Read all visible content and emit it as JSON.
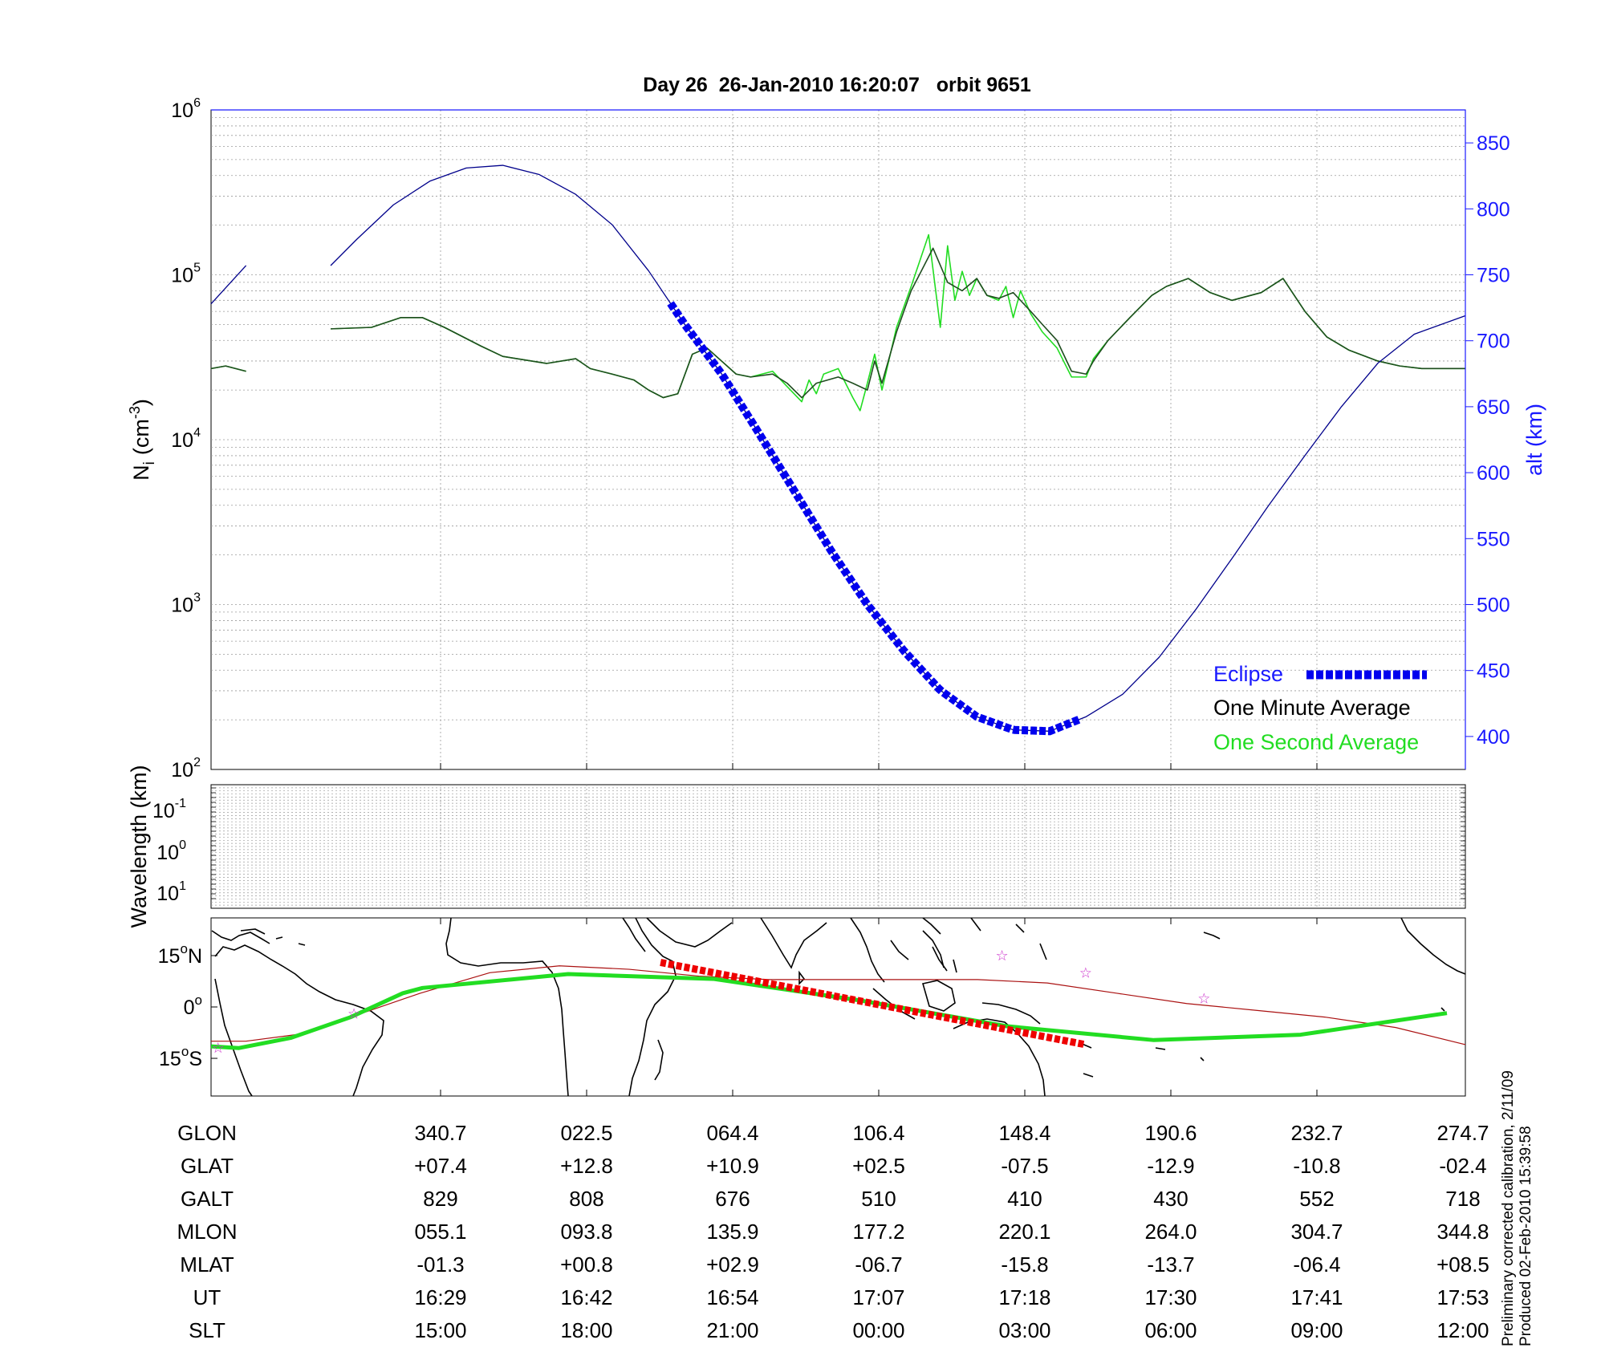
{
  "title": "Day 26  26-Jan-2010 16:20:07   orbit 9651",
  "colors": {
    "eclipse": "#0000ee",
    "altitude": "#00008b",
    "one_minute": "#1f4d1f",
    "one_second": "#22dd22",
    "ground_track": "#22dd22",
    "orbit_track": "#aa1111",
    "eclipse_track": "#ee0000",
    "markers": "#cc33cc",
    "right_axis": "#1a1aff"
  },
  "chart_data": [
    {
      "id": "ion-density",
      "type": "line",
      "ylabel": "N",
      "ylabel_sub": "i",
      "ylabel_unit": "(cm",
      "ylabel_exp": "-3",
      "yscale": "log",
      "ylim": [
        100,
        1000000
      ],
      "yticks": [
        {
          "base": "10",
          "exp": "2",
          "value": 100
        },
        {
          "base": "10",
          "exp": "3",
          "value": 1000
        },
        {
          "base": "10",
          "exp": "4",
          "value": 10000
        },
        {
          "base": "10",
          "exp": "5",
          "value": 100000
        },
        {
          "base": "10",
          "exp": "6",
          "value": 1000000
        }
      ],
      "y2label": "alt (km)",
      "y2lim": [
        375,
        875
      ],
      "y2ticks": [
        "400",
        "450",
        "500",
        "550",
        "600",
        "650",
        "700",
        "750",
        "800",
        "850"
      ],
      "xlim": [
        0,
        8.6
      ],
      "grid": true,
      "legend": {
        "placement": "bottom-right",
        "entries": [
          {
            "label": "Eclipse",
            "series": "eclipse"
          },
          {
            "label": "One Minute Average",
            "series": "one_minute"
          },
          {
            "label": "One Second Average",
            "series": "one_second"
          }
        ]
      },
      "series": [
        {
          "key": "one_minute",
          "name": "One Minute Average",
          "segments": [
            {
              "x": [
                0,
                0.1,
                0.24
              ],
              "y": [
                27000,
                28000,
                26000
              ]
            },
            {
              "x": [
                0.82,
                1.1,
                1.3,
                1.45,
                1.6,
                1.85,
                2.0,
                2.3,
                2.5,
                2.6,
                2.75,
                2.9,
                3.0,
                3.1,
                3.2,
                3.3,
                3.4,
                3.5,
                3.6,
                3.7,
                3.85,
                3.95,
                4.05,
                4.15,
                4.3,
                4.4,
                4.5,
                4.55,
                4.6,
                4.7,
                4.8,
                4.95,
                5.05,
                5.15,
                5.25,
                5.32,
                5.4,
                5.5,
                5.62,
                5.7,
                5.8,
                5.9,
                6.0,
                6.05,
                6.15,
                6.3,
                6.45,
                6.55,
                6.7,
                6.85,
                7.0,
                7.2,
                7.35,
                7.5,
                7.65,
                7.8,
                8.0,
                8.15,
                8.3,
                8.45,
                8.6
              ],
              "y": [
                47000,
                48000,
                55000,
                55000,
                48000,
                37000,
                32000,
                29000,
                31000,
                27000,
                25000,
                23000,
                20000,
                18000,
                19000,
                33000,
                36000,
                30000,
                25000,
                24000,
                25000,
                22000,
                18000,
                22000,
                24000,
                22000,
                20000,
                30000,
                22000,
                45000,
                80000,
                145000,
                90000,
                80000,
                95000,
                75000,
                72000,
                78000,
                60000,
                50000,
                40000,
                26000,
                25000,
                30000,
                40000,
                55000,
                75000,
                85000,
                95000,
                78000,
                70000,
                78000,
                95000,
                60000,
                42000,
                35000,
                30000,
                28000,
                27000,
                27000,
                27000
              ]
            }
          ]
        },
        {
          "key": "one_second",
          "name": "One Second Average",
          "segments": [
            {
              "x": [
                0,
                0.1,
                0.24
              ],
              "y": [
                27000,
                28000,
                26000
              ]
            },
            {
              "x": [
                0.82,
                1.1,
                1.3,
                1.45,
                1.6,
                1.85,
                2.0,
                2.3,
                2.5,
                2.6,
                2.75,
                2.9,
                3.0,
                3.1,
                3.2,
                3.3,
                3.4,
                3.5,
                3.6,
                3.7,
                3.85,
                3.95,
                4.05,
                4.1,
                4.15,
                4.2,
                4.3,
                4.4,
                4.45,
                4.5,
                4.55,
                4.6,
                4.7,
                4.8,
                4.92,
                5.0,
                5.05,
                5.1,
                5.15,
                5.2,
                5.25,
                5.32,
                5.4,
                5.45,
                5.5,
                5.55,
                5.62,
                5.7,
                5.8,
                5.9,
                6.0,
                6.05,
                6.15,
                6.3,
                6.45,
                6.55,
                6.7,
                6.85,
                7.0,
                7.2,
                7.35,
                7.5,
                7.65,
                7.8,
                8.0,
                8.15,
                8.3,
                8.45,
                8.6
              ],
              "y": [
                47000,
                48000,
                55000,
                55000,
                48000,
                37000,
                32000,
                29000,
                31000,
                27000,
                25000,
                23000,
                20000,
                18000,
                19000,
                33000,
                36000,
                30000,
                25000,
                24000,
                26000,
                21000,
                17000,
                23000,
                19000,
                25000,
                27000,
                18000,
                15000,
                22000,
                33000,
                20000,
                48000,
                85000,
                175000,
                48000,
                150000,
                70000,
                105000,
                75000,
                95000,
                75000,
                70000,
                85000,
                55000,
                80000,
                58000,
                45000,
                36000,
                24000,
                24000,
                31000,
                40000,
                55000,
                75000,
                85000,
                95000,
                78000,
                70000,
                78000,
                95000,
                60000,
                42000,
                35000,
                30000,
                28000,
                27000,
                27000,
                27000
              ]
            }
          ]
        },
        {
          "key": "altitude",
          "name": "alt (km)",
          "axis": "right",
          "segments": [
            {
              "x": [
                0,
                0.24
              ],
              "y": [
                728,
                757
              ]
            },
            {
              "x": [
                0.82,
                1.0,
                1.25,
                1.5,
                1.75,
                2.0,
                2.25,
                2.5,
                2.75,
                3.0,
                3.25,
                3.5,
                3.75,
                4.0,
                4.25,
                4.5,
                4.75,
                5.0,
                5.25,
                5.5,
                5.75,
                6.0,
                6.25,
                6.5,
                6.75,
                7.0,
                7.25,
                7.5,
                7.75,
                8.0,
                8.25,
                8.6
              ],
              "y": [
                757,
                777,
                803,
                821,
                831,
                833,
                826,
                811,
                788,
                753,
                712,
                675,
                631,
                586,
                541,
                500,
                465,
                435,
                415,
                405,
                404,
                415,
                432,
                460,
                496,
                535,
                575,
                613,
                650,
                683,
                705,
                719
              ]
            }
          ]
        },
        {
          "key": "eclipse",
          "name": "Eclipse",
          "axis": "right",
          "x_range": [
            3.15,
            5.95
          ]
        }
      ]
    },
    {
      "id": "wavelength",
      "type": "heatmap",
      "ylabel": "Wavelength (km)",
      "yticks": [
        {
          "base": "10",
          "exp": "-1"
        },
        {
          "base": "10",
          "exp": "0"
        },
        {
          "base": "10",
          "exp": "1"
        }
      ],
      "grid": true
    },
    {
      "id": "ground-track",
      "type": "line",
      "yticks": [
        {
          "value": "15",
          "deg": "o",
          "hem": "N",
          "lat": 15
        },
        {
          "value": "0",
          "deg": "o",
          "hem": "",
          "lat": 0
        },
        {
          "value": "15",
          "deg": "o",
          "hem": "S",
          "lat": -15
        }
      ],
      "ylim": [
        -26,
        26
      ],
      "xlim": [
        -80,
        280
      ],
      "magnetic_equator": {
        "lon": [
          -80,
          -70,
          -55,
          -40,
          -20,
          0,
          20,
          40,
          60,
          80,
          100,
          120,
          140,
          160,
          180,
          200,
          220,
          240,
          260,
          280
        ],
        "lat": [
          -10,
          -10,
          -8,
          -3,
          4,
          10,
          12,
          11,
          9,
          8,
          8,
          8,
          8,
          7,
          4,
          1,
          -1,
          -3,
          -6,
          -11
        ]
      },
      "markers_lonlat": [
        [
          -78,
          -12
        ],
        [
          -39,
          -2
        ],
        [
          147,
          15
        ],
        [
          171,
          10
        ],
        [
          205,
          2.5
        ]
      ],
      "eclipse_lon_range": [
        49,
        171
      ]
    }
  ],
  "table": {
    "rows": [
      {
        "label": "GLON",
        "values": [
          "340.7",
          "022.5",
          "064.4",
          "106.4",
          "148.4",
          "190.6",
          "232.7",
          "274.7"
        ]
      },
      {
        "label": "GLAT",
        "values": [
          "+07.4",
          "+12.8",
          "+10.9",
          "+02.5",
          "-07.5",
          "-12.9",
          "-10.8",
          "-02.4"
        ]
      },
      {
        "label": "GALT",
        "values": [
          "829",
          "808",
          "676",
          "510",
          "410",
          "430",
          "552",
          "718"
        ]
      },
      {
        "label": "MLON",
        "values": [
          "055.1",
          "093.8",
          "135.9",
          "177.2",
          "220.1",
          "264.0",
          "304.7",
          "344.8"
        ]
      },
      {
        "label": "MLAT",
        "values": [
          "-01.3",
          "+00.8",
          "+02.9",
          "-06.7",
          "-15.8",
          "-13.7",
          "-06.4",
          "+08.5"
        ]
      },
      {
        "label": "UT",
        "values": [
          "16:29",
          "16:42",
          "16:54",
          "17:07",
          "17:18",
          "17:30",
          "17:41",
          "17:53"
        ]
      },
      {
        "label": "SLT",
        "values": [
          "15:00",
          "18:00",
          "21:00",
          "00:00",
          "03:00",
          "06:00",
          "09:00",
          "12:00"
        ]
      }
    ]
  },
  "footnote": {
    "line1": "Preliminary corrected calibration, 2/11/09",
    "line2": "Produced 02-Feb-2010 15:39:58"
  }
}
